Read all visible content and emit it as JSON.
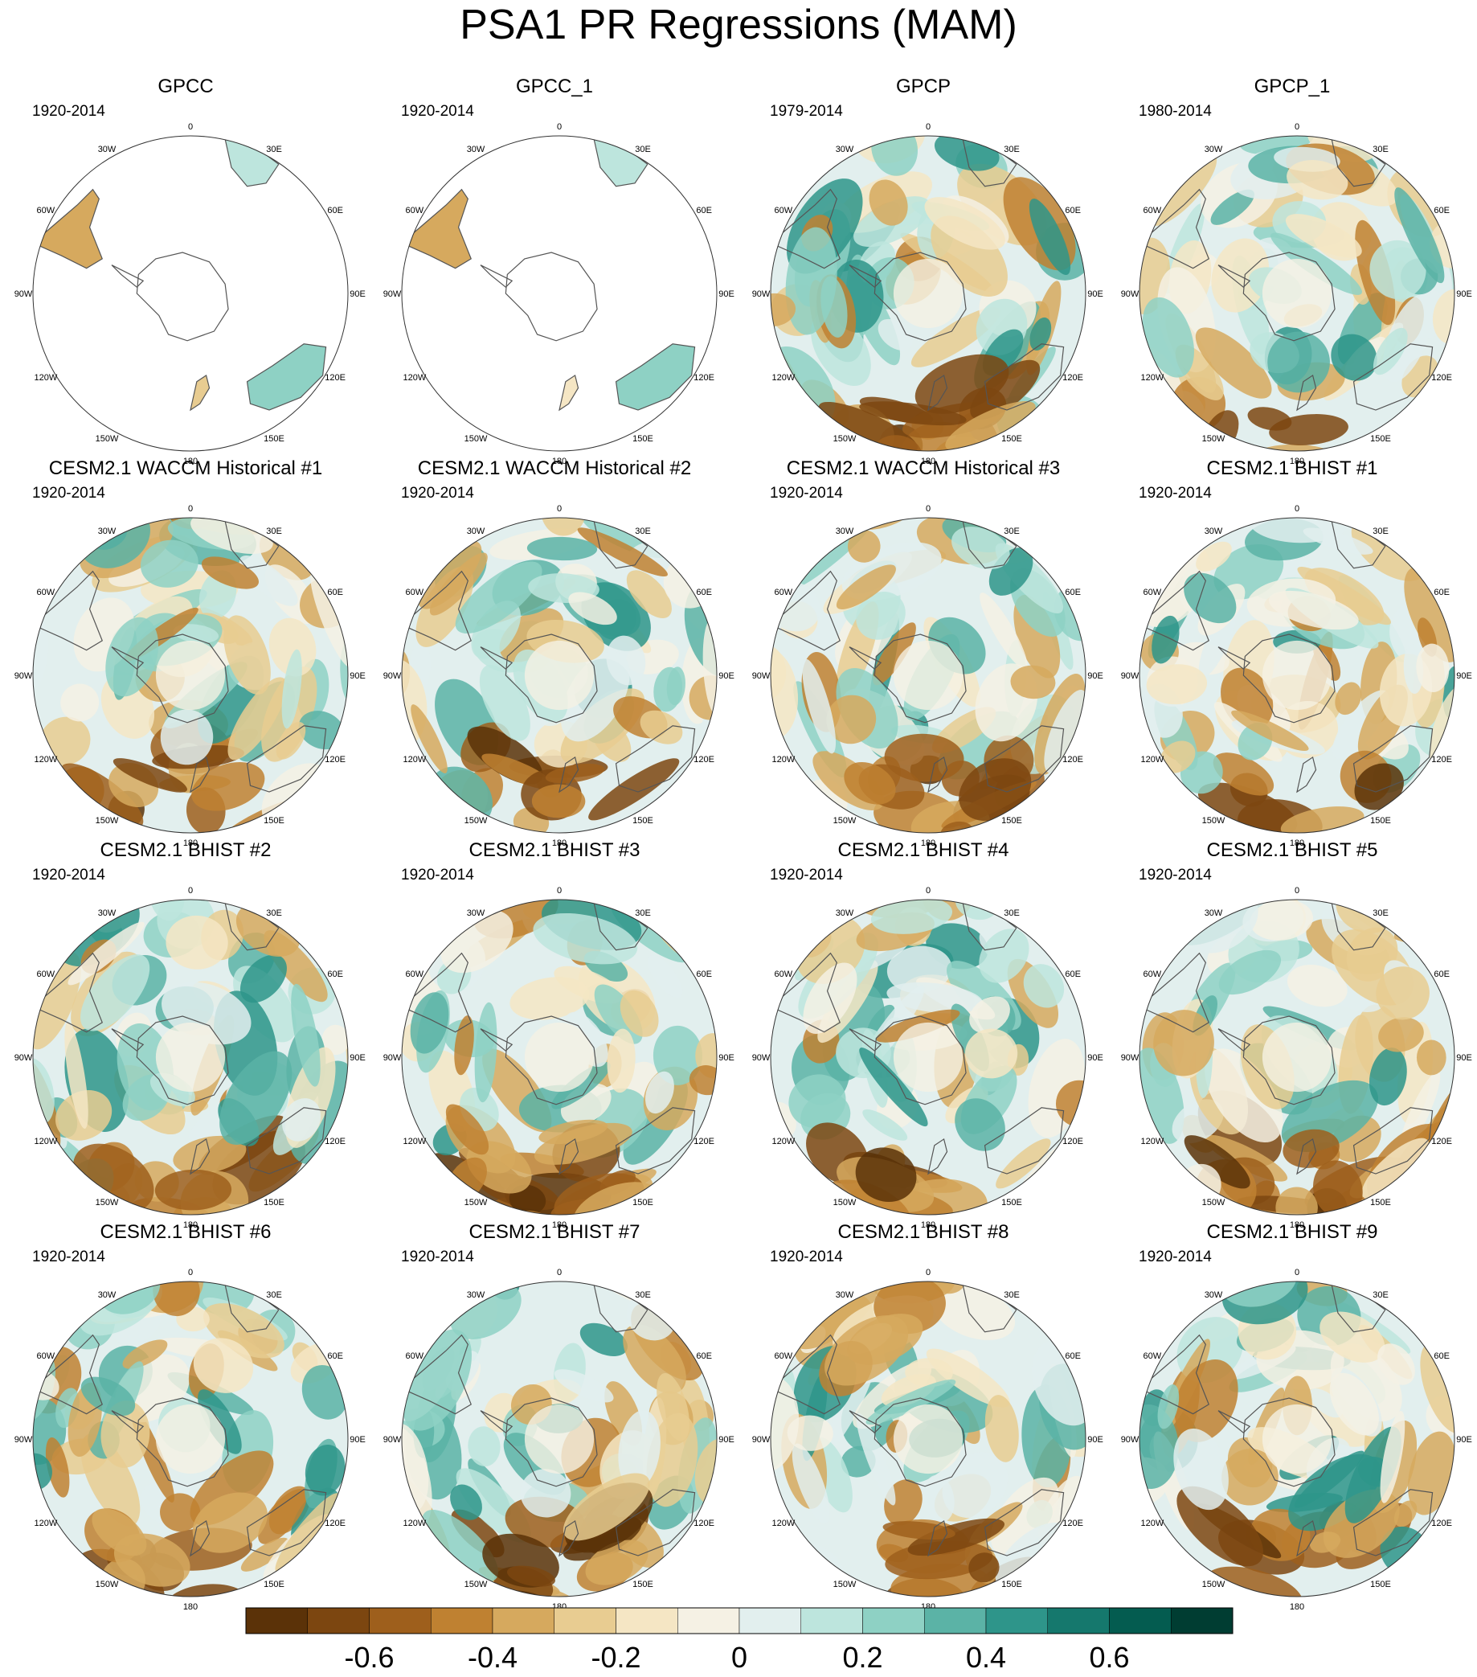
{
  "title": "PSA1 PR Regressions (MAM)",
  "longitude_labels": [
    "0",
    "30E",
    "60E",
    "90E",
    "120E",
    "150E",
    "180",
    "150W",
    "120W",
    "90W",
    "60W",
    "30W"
  ],
  "panels": [
    {
      "title": "GPCC",
      "period": "1920-2014",
      "coverage": "land_only",
      "seed": 11
    },
    {
      "title": "GPCC_1",
      "period": "1920-2014",
      "coverage": "land_only",
      "seed": 23
    },
    {
      "title": "GPCP",
      "period": "1979-2014",
      "coverage": "global",
      "seed": 37
    },
    {
      "title": "GPCP_1",
      "period": "1980-2014",
      "coverage": "global",
      "seed": 41
    },
    {
      "title": "CESM2.1 WACCM Historical #1",
      "period": "1920-2014",
      "coverage": "global",
      "seed": 53
    },
    {
      "title": "CESM2.1 WACCM Historical #2",
      "period": "1920-2014",
      "coverage": "global",
      "seed": 67
    },
    {
      "title": "CESM2.1 WACCM Historical #3",
      "period": "1920-2014",
      "coverage": "global",
      "seed": 71
    },
    {
      "title": "CESM2.1 BHIST #1",
      "period": "1920-2014",
      "coverage": "global",
      "seed": 83
    },
    {
      "title": "CESM2.1 BHIST #2",
      "period": "1920-2014",
      "coverage": "global",
      "seed": 97
    },
    {
      "title": "CESM2.1 BHIST #3",
      "period": "1920-2014",
      "coverage": "global",
      "seed": 101
    },
    {
      "title": "CESM2.1 BHIST #4",
      "period": "1920-2014",
      "coverage": "global",
      "seed": 113
    },
    {
      "title": "CESM2.1 BHIST #5",
      "period": "1920-2014",
      "coverage": "global",
      "seed": 127
    },
    {
      "title": "CESM2.1 BHIST #6",
      "period": "1920-2014",
      "coverage": "global",
      "seed": 131
    },
    {
      "title": "CESM2.1 BHIST #7",
      "period": "1920-2014",
      "coverage": "global",
      "seed": 149
    },
    {
      "title": "CESM2.1 BHIST #8",
      "period": "1920-2014",
      "coverage": "global",
      "seed": 157
    },
    {
      "title": "CESM2.1 BHIST #9",
      "period": "1920-2014",
      "coverage": "global",
      "seed": 163
    }
  ],
  "colorbar": {
    "colors": [
      "#5b3208",
      "#7c4610",
      "#9e5f1c",
      "#bf8131",
      "#d6a95e",
      "#e8cc91",
      "#f5e6c4",
      "#f5f1e4",
      "#e2efee",
      "#bde5dd",
      "#8ed1c4",
      "#5bb3a6",
      "#2e958a",
      "#15786d",
      "#045c50",
      "#003d32"
    ],
    "tick_labels": [
      "-0.6",
      "-0.4",
      "-0.2",
      "0",
      "0.2",
      "0.4",
      "0.6"
    ],
    "tick_values": [
      -0.6,
      -0.4,
      -0.2,
      0,
      0.2,
      0.4,
      0.6
    ],
    "min": -0.8,
    "max": 0.8
  }
}
